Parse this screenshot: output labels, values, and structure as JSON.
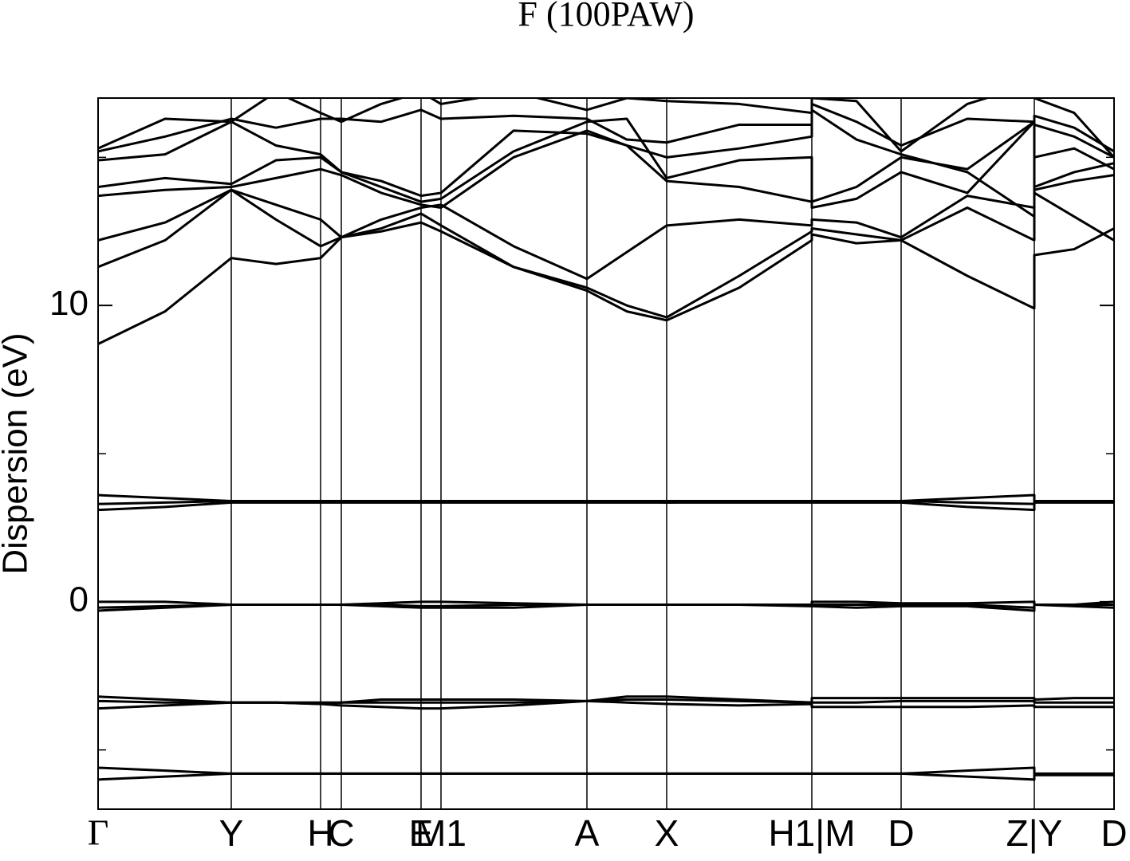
{
  "chart_data": {
    "type": "line",
    "title": "F (100PAW)",
    "y_label": "Dispersion (eV)",
    "color": "#000000",
    "xlim": [
      0,
      1274
    ],
    "ylim": [
      -7,
      17
    ],
    "yticks": [
      0,
      10
    ],
    "minor_yticks": [
      -5,
      5,
      15
    ],
    "xticks": [
      {
        "value": 0,
        "label": "Γ"
      },
      {
        "value": 167,
        "label": "Y"
      },
      {
        "value": 279,
        "label": "H"
      },
      {
        "value": 305,
        "label": "C"
      },
      {
        "value": 405,
        "label": "E"
      },
      {
        "value": 430,
        "label": "M1"
      },
      {
        "value": 613,
        "label": "A"
      },
      {
        "value": 713,
        "label": "X"
      },
      {
        "value": 895,
        "label": "H1|M"
      },
      {
        "value": 1007,
        "label": "D"
      },
      {
        "value": 1174,
        "label": "Z|Y"
      },
      {
        "value": 1274,
        "label": "D"
      }
    ],
    "x": [
      0,
      84,
      167,
      223,
      279,
      305,
      355,
      405,
      430,
      521,
      613,
      663,
      713,
      804,
      895,
      895,
      951,
      1007,
      1090,
      1174,
      1174,
      1224,
      1274
    ],
    "series": [
      {
        "values": [
          8.7,
          9.8,
          11.6,
          11.4,
          11.6,
          12.3,
          12.5,
          12.8,
          12.5,
          11.3,
          10.5,
          9.8,
          9.5,
          10.6,
          12.2,
          12.4,
          12.1,
          12.2,
          11.0,
          9.9,
          11.7,
          11.9,
          12.6
        ]
      },
      {
        "values": [
          11.3,
          12.2,
          13.9,
          12.9,
          12.0,
          12.3,
          12.6,
          13.1,
          12.7,
          11.3,
          10.6,
          10.0,
          9.6,
          11.0,
          12.5,
          12.6,
          12.4,
          12.2,
          13.3,
          12.2,
          13.8,
          13.0,
          12.2
        ]
      },
      {
        "values": [
          12.2,
          12.8,
          13.9,
          13.4,
          12.9,
          12.3,
          12.9,
          13.3,
          13.4,
          12.0,
          10.9,
          11.8,
          12.7,
          12.9,
          12.7,
          12.9,
          12.8,
          12.3,
          13.7,
          13.3,
          13.9,
          14.2,
          14.4
        ]
      },
      {
        "values": [
          13.7,
          13.9,
          14.0,
          14.3,
          14.6,
          14.4,
          13.8,
          13.4,
          13.3,
          15.0,
          15.9,
          15.4,
          14.2,
          14.0,
          13.5,
          13.3,
          13.6,
          14.5,
          13.8,
          16.2,
          14.0,
          14.5,
          14.8
        ]
      },
      {
        "values": [
          14.0,
          14.3,
          14.1,
          14.9,
          15.0,
          14.5,
          14.0,
          13.5,
          13.6,
          15.2,
          16.2,
          16.3,
          14.3,
          14.9,
          15.0,
          13.5,
          14.0,
          15.0,
          14.6,
          16.2,
          16.1,
          15.7,
          15.0
        ]
      },
      {
        "values": [
          14.9,
          15.1,
          16.2,
          15.4,
          15.1,
          14.5,
          14.2,
          13.7,
          13.8,
          15.9,
          15.8,
          15.4,
          15.0,
          15.3,
          15.7,
          16.6,
          15.6,
          15.1,
          14.5,
          13.0,
          16.4,
          16.0,
          15.2
        ]
      },
      {
        "values": [
          15.2,
          15.7,
          16.3,
          16.0,
          16.3,
          16.3,
          16.2,
          16.6,
          16.3,
          16.4,
          16.3,
          15.6,
          15.5,
          16.1,
          16.1,
          16.8,
          16.2,
          15.4,
          16.3,
          16.2,
          15.0,
          15.3,
          14.6
        ]
      },
      {
        "values": [
          15.3,
          16.3,
          16.2,
          17.2,
          16.5,
          16.2,
          16.8,
          17.2,
          16.8,
          17.2,
          16.6,
          17.0,
          16.9,
          16.8,
          16.5,
          17.0,
          16.9,
          15.2,
          16.8,
          17.5,
          17.0,
          16.5,
          15.0
        ]
      },
      {
        "values": [
          3.6,
          3.5,
          3.4,
          3.4,
          3.4,
          3.4,
          3.4,
          3.4,
          3.4,
          3.4,
          3.4,
          3.4,
          3.35,
          3.4,
          3.4,
          3.4,
          3.4,
          3.4,
          3.5,
          3.6,
          3.4,
          3.4,
          3.4
        ]
      },
      {
        "values": [
          3.3,
          3.35,
          3.4,
          3.4,
          3.4,
          3.4,
          3.4,
          3.4,
          3.4,
          3.4,
          3.4,
          3.4,
          3.4,
          3.4,
          3.4,
          3.4,
          3.4,
          3.4,
          3.35,
          3.3,
          3.4,
          3.4,
          3.4
        ]
      },
      {
        "values": [
          3.1,
          3.2,
          3.35,
          3.35,
          3.35,
          3.35,
          3.35,
          3.35,
          3.35,
          3.35,
          3.35,
          3.35,
          3.35,
          3.35,
          3.35,
          3.35,
          3.35,
          3.35,
          3.2,
          3.1,
          3.35,
          3.35,
          3.35
        ]
      },
      {
        "values": [
          0.0,
          0.0,
          -0.1,
          -0.1,
          -0.1,
          -0.1,
          -0.05,
          0.0,
          0.0,
          -0.05,
          -0.1,
          -0.1,
          -0.1,
          -0.1,
          -0.1,
          0.0,
          0.0,
          -0.05,
          -0.05,
          0.0,
          -0.1,
          -0.1,
          0.0
        ]
      },
      {
        "values": [
          -0.2,
          -0.15,
          -0.1,
          -0.1,
          -0.1,
          -0.1,
          -0.1,
          -0.15,
          -0.15,
          -0.1,
          -0.1,
          -0.1,
          -0.1,
          -0.1,
          -0.1,
          -0.1,
          -0.1,
          -0.1,
          -0.1,
          -0.2,
          -0.1,
          -0.1,
          -0.1
        ]
      },
      {
        "values": [
          -0.3,
          -0.2,
          -0.1,
          -0.1,
          -0.1,
          -0.1,
          -0.15,
          -0.2,
          -0.2,
          -0.2,
          -0.1,
          -0.1,
          -0.1,
          -0.1,
          -0.15,
          -0.15,
          -0.2,
          -0.15,
          -0.15,
          -0.3,
          -0.1,
          -0.15,
          -0.2
        ]
      },
      {
        "values": [
          -3.2,
          -3.3,
          -3.4,
          -3.4,
          -3.4,
          -3.4,
          -3.3,
          -3.3,
          -3.3,
          -3.3,
          -3.35,
          -3.2,
          -3.2,
          -3.3,
          -3.4,
          -3.25,
          -3.25,
          -3.25,
          -3.25,
          -3.25,
          -3.3,
          -3.25,
          -3.25
        ]
      },
      {
        "values": [
          -3.35,
          -3.4,
          -3.4,
          -3.4,
          -3.45,
          -3.4,
          -3.4,
          -3.4,
          -3.4,
          -3.4,
          -3.35,
          -3.3,
          -3.3,
          -3.35,
          -3.4,
          -3.4,
          -3.4,
          -3.35,
          -3.35,
          -3.35,
          -3.4,
          -3.4,
          -3.4
        ]
      },
      {
        "values": [
          -3.6,
          -3.5,
          -3.4,
          -3.4,
          -3.45,
          -3.5,
          -3.55,
          -3.6,
          -3.6,
          -3.5,
          -3.35,
          -3.4,
          -3.45,
          -3.5,
          -3.45,
          -3.55,
          -3.55,
          -3.55,
          -3.55,
          -3.5,
          -3.55,
          -3.55,
          -3.55
        ]
      },
      {
        "values": [
          -5.6,
          -5.7,
          -5.8,
          -5.8,
          -5.8,
          -5.8,
          -5.8,
          -5.8,
          -5.8,
          -5.8,
          -5.8,
          -5.8,
          -5.8,
          -5.8,
          -5.8,
          -5.8,
          -5.8,
          -5.8,
          -5.7,
          -5.6,
          -5.8,
          -5.8,
          -5.8
        ]
      },
      {
        "values": [
          -6.0,
          -5.9,
          -5.8,
          -5.8,
          -5.8,
          -5.8,
          -5.8,
          -5.8,
          -5.8,
          -5.8,
          -5.8,
          -5.8,
          -5.8,
          -5.8,
          -5.8,
          -5.8,
          -5.8,
          -5.8,
          -5.9,
          -6.0,
          -5.85,
          -5.85,
          -5.85
        ]
      }
    ]
  }
}
